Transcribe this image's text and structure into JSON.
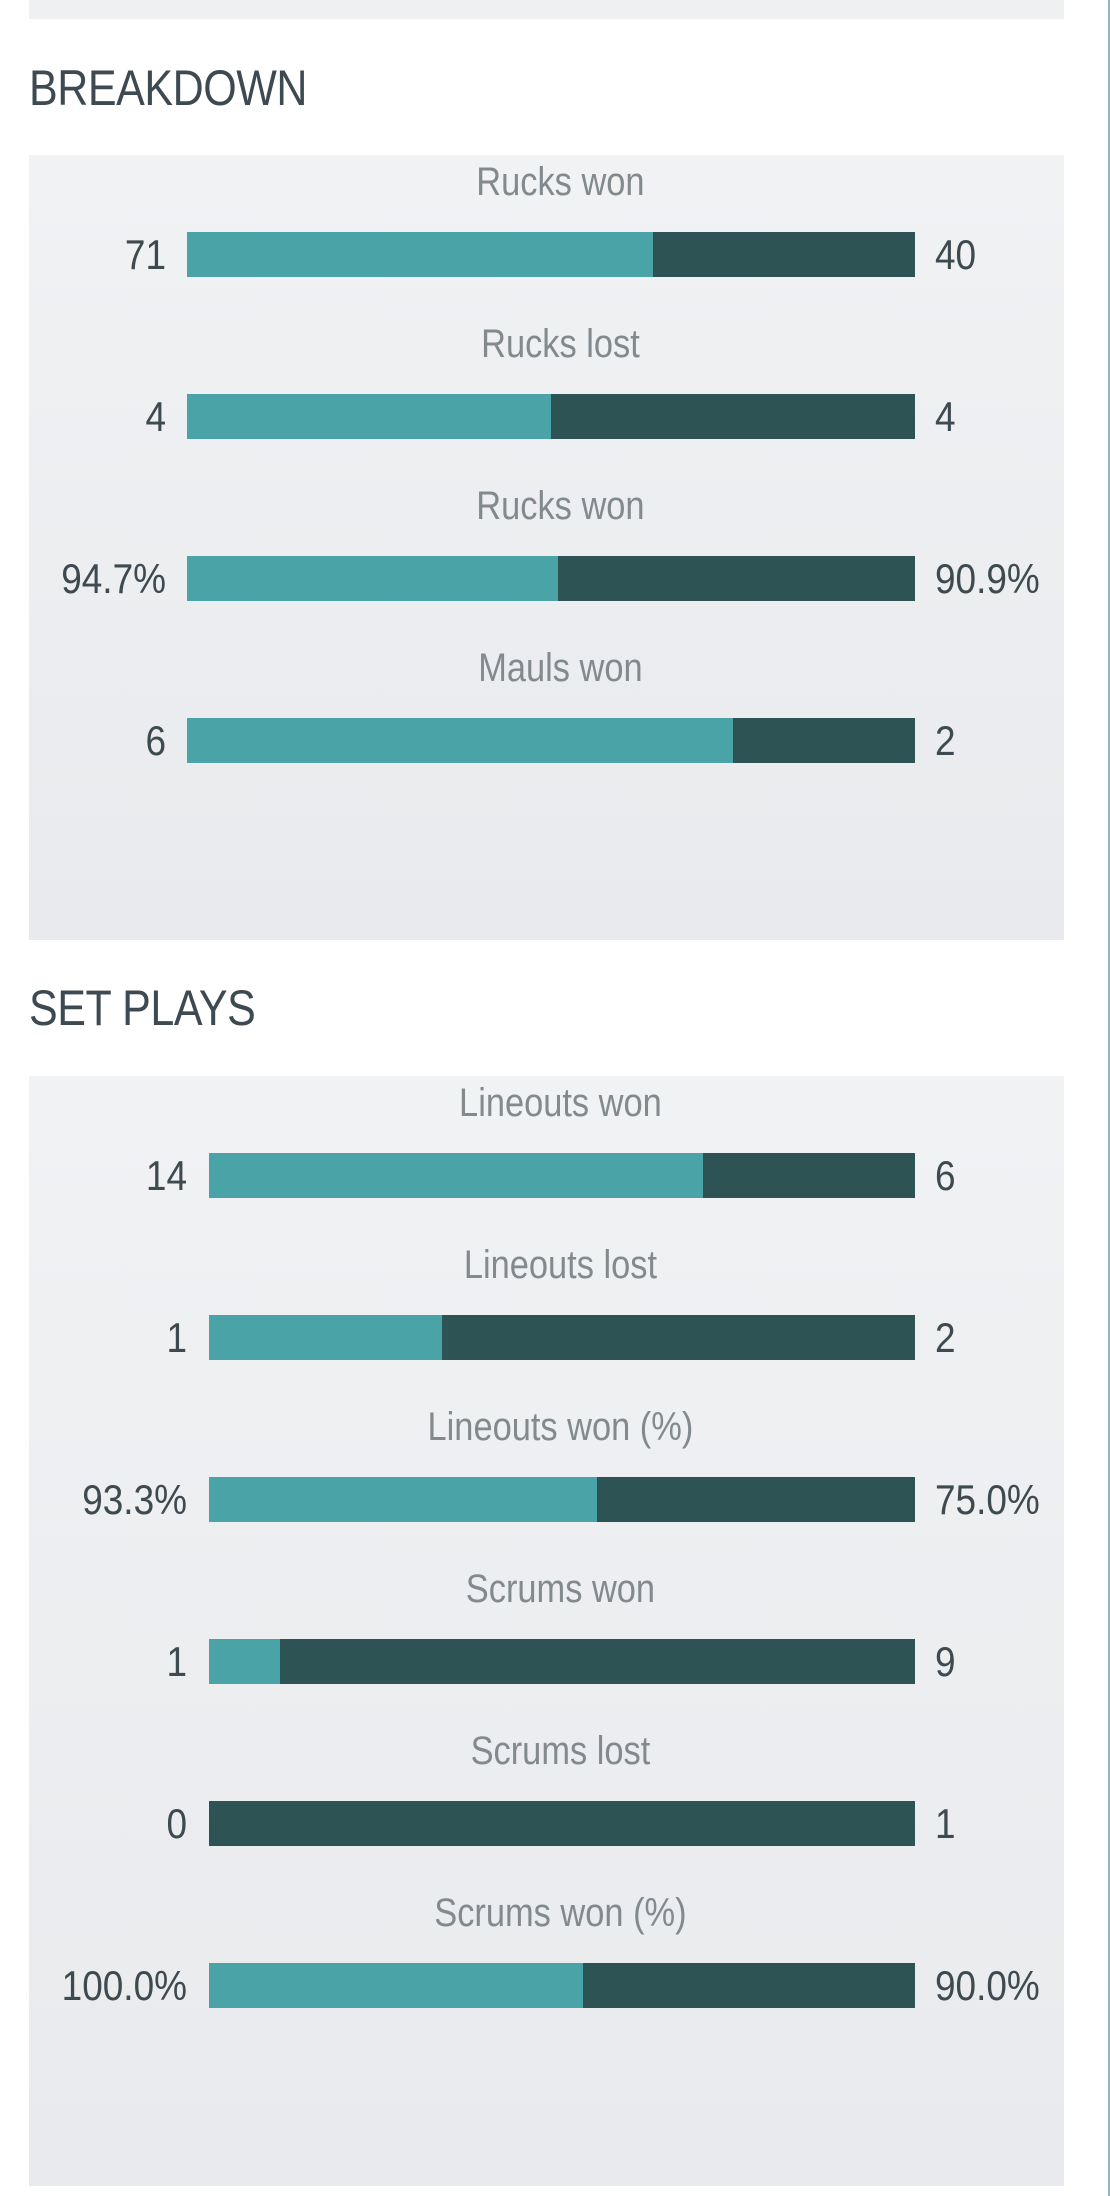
{
  "colors": {
    "home": "#4aa3a6",
    "away": "#2e5355",
    "panel": "#eff0f2",
    "title": "#3e4a51",
    "label": "#828a8e"
  },
  "sections": [
    {
      "title": "BREAKDOWN",
      "stats": [
        {
          "label": "Rucks won",
          "left": "71",
          "right": "40",
          "home_share": 0.64
        },
        {
          "label": "Rucks lost",
          "left": "4",
          "right": "4",
          "home_share": 0.5
        },
        {
          "label": "Rucks won",
          "left": "94.7%",
          "right": "90.9%",
          "home_share": 0.51
        },
        {
          "label": "Mauls won",
          "left": "6",
          "right": "2",
          "home_share": 0.75
        }
      ]
    },
    {
      "title": "SET PLAYS",
      "stats": [
        {
          "label": "Lineouts won",
          "left": "14",
          "right": "6",
          "home_share": 0.7
        },
        {
          "label": "Lineouts lost",
          "left": "1",
          "right": "2",
          "home_share": 0.33
        },
        {
          "label": "Lineouts won (%)",
          "left": "93.3%",
          "right": "75.0%",
          "home_share": 0.55
        },
        {
          "label": "Scrums won",
          "left": "1",
          "right": "9",
          "home_share": 0.1
        },
        {
          "label": "Scrums lost",
          "left": "0",
          "right": "1",
          "home_share": 0.0
        },
        {
          "label": "Scrums won (%)",
          "left": "100.0%",
          "right": "90.0%",
          "home_share": 0.53
        }
      ]
    }
  ]
}
